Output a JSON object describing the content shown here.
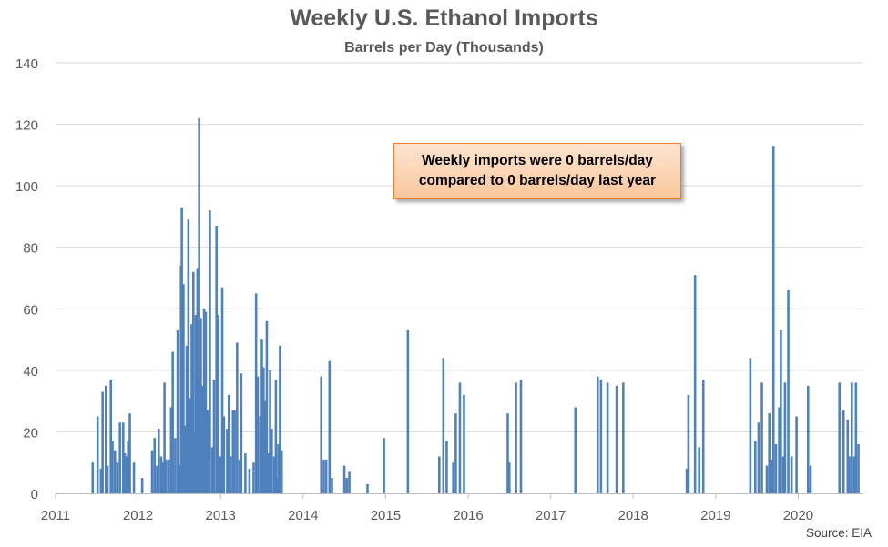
{
  "chart_data": {
    "type": "bar",
    "title": "Weekly U.S. Ethanol Imports",
    "subtitle": "Barrels per Day (Thousands)",
    "ylim": [
      0,
      140
    ],
    "yticks": [
      0,
      20,
      40,
      60,
      80,
      100,
      120,
      140
    ],
    "xticks": [
      "2011",
      "2012",
      "2013",
      "2014",
      "2015",
      "2016",
      "2017",
      "2018",
      "2019",
      "2020"
    ],
    "xlim": [
      2011.0,
      2020.8
    ],
    "grid": true,
    "bar_color": "#4f81bd",
    "annotation": "Weekly imports were 0 barrels/day\ncompared to 0 barrels/day last year",
    "source": "Source: EIA",
    "points": [
      [
        2011.45,
        10
      ],
      [
        2011.51,
        25
      ],
      [
        2011.55,
        8
      ],
      [
        2011.57,
        33
      ],
      [
        2011.61,
        35
      ],
      [
        2011.63,
        9
      ],
      [
        2011.67,
        37
      ],
      [
        2011.69,
        17
      ],
      [
        2011.72,
        14
      ],
      [
        2011.75,
        10
      ],
      [
        2011.78,
        23
      ],
      [
        2011.82,
        23
      ],
      [
        2011.84,
        13
      ],
      [
        2011.86,
        12
      ],
      [
        2011.88,
        17
      ],
      [
        2011.9,
        26
      ],
      [
        2011.95,
        10
      ],
      [
        2012.05,
        5
      ],
      [
        2012.17,
        14
      ],
      [
        2012.2,
        18
      ],
      [
        2012.23,
        9
      ],
      [
        2012.25,
        21
      ],
      [
        2012.28,
        12
      ],
      [
        2012.3,
        10
      ],
      [
        2012.32,
        36
      ],
      [
        2012.34,
        11
      ],
      [
        2012.37,
        11
      ],
      [
        2012.4,
        28
      ],
      [
        2012.42,
        46
      ],
      [
        2012.45,
        18
      ],
      [
        2012.48,
        53
      ],
      [
        2012.5,
        9
      ],
      [
        2012.52,
        74
      ],
      [
        2012.53,
        93
      ],
      [
        2012.55,
        68
      ],
      [
        2012.57,
        22
      ],
      [
        2012.59,
        48
      ],
      [
        2012.61,
        89
      ],
      [
        2012.63,
        31
      ],
      [
        2012.65,
        55
      ],
      [
        2012.67,
        72
      ],
      [
        2012.69,
        20
      ],
      [
        2012.7,
        58
      ],
      [
        2012.72,
        73
      ],
      [
        2012.74,
        122
      ],
      [
        2012.76,
        57
      ],
      [
        2012.78,
        35
      ],
      [
        2012.8,
        60
      ],
      [
        2012.82,
        59
      ],
      [
        2012.84,
        27
      ],
      [
        2012.86,
        12
      ],
      [
        2012.87,
        92
      ],
      [
        2012.9,
        15
      ],
      [
        2012.92,
        37
      ],
      [
        2012.95,
        87
      ],
      [
        2012.97,
        58
      ],
      [
        2013.0,
        12
      ],
      [
        2013.02,
        67
      ],
      [
        2013.04,
        25
      ],
      [
        2013.08,
        21
      ],
      [
        2013.1,
        32
      ],
      [
        2013.12,
        12
      ],
      [
        2013.15,
        27
      ],
      [
        2013.17,
        27
      ],
      [
        2013.2,
        49
      ],
      [
        2013.23,
        11
      ],
      [
        2013.25,
        39
      ],
      [
        2013.3,
        13
      ],
      [
        2013.35,
        8
      ],
      [
        2013.4,
        10
      ],
      [
        2013.43,
        65
      ],
      [
        2013.45,
        38
      ],
      [
        2013.48,
        25
      ],
      [
        2013.5,
        50
      ],
      [
        2013.52,
        41
      ],
      [
        2013.54,
        30
      ],
      [
        2013.56,
        56
      ],
      [
        2013.58,
        13
      ],
      [
        2013.6,
        40
      ],
      [
        2013.62,
        21
      ],
      [
        2013.65,
        12
      ],
      [
        2013.67,
        37
      ],
      [
        2013.68,
        5
      ],
      [
        2013.7,
        16
      ],
      [
        2013.72,
        48
      ],
      [
        2013.74,
        14
      ],
      [
        2014.22,
        38
      ],
      [
        2014.25,
        11
      ],
      [
        2014.28,
        11
      ],
      [
        2014.32,
        43
      ],
      [
        2014.35,
        5
      ],
      [
        2014.5,
        9
      ],
      [
        2014.53,
        5
      ],
      [
        2014.56,
        7
      ],
      [
        2014.78,
        3
      ],
      [
        2014.98,
        18
      ],
      [
        2015.27,
        53
      ],
      [
        2015.65,
        12
      ],
      [
        2015.7,
        44
      ],
      [
        2015.74,
        17
      ],
      [
        2015.82,
        10
      ],
      [
        2015.85,
        26
      ],
      [
        2015.9,
        36
      ],
      [
        2015.95,
        32
      ],
      [
        2016.48,
        26
      ],
      [
        2016.5,
        10
      ],
      [
        2016.58,
        36
      ],
      [
        2016.64,
        37
      ],
      [
        2017.3,
        28
      ],
      [
        2017.57,
        38
      ],
      [
        2017.61,
        37
      ],
      [
        2017.69,
        36
      ],
      [
        2017.8,
        35
      ],
      [
        2017.88,
        36
      ],
      [
        2018.65,
        8
      ],
      [
        2018.67,
        32
      ],
      [
        2018.75,
        71
      ],
      [
        2018.8,
        15
      ],
      [
        2018.85,
        37
      ],
      [
        2019.42,
        44
      ],
      [
        2019.48,
        17
      ],
      [
        2019.52,
        23
      ],
      [
        2019.56,
        36
      ],
      [
        2019.62,
        9
      ],
      [
        2019.65,
        26
      ],
      [
        2019.68,
        11
      ],
      [
        2019.7,
        113
      ],
      [
        2019.73,
        16
      ],
      [
        2019.77,
        28
      ],
      [
        2019.79,
        53
      ],
      [
        2019.82,
        12
      ],
      [
        2019.84,
        36
      ],
      [
        2019.88,
        66
      ],
      [
        2019.92,
        12
      ],
      [
        2019.98,
        25
      ],
      [
        2020.12,
        35
      ],
      [
        2020.15,
        9
      ],
      [
        2020.5,
        36
      ],
      [
        2020.55,
        27
      ],
      [
        2020.6,
        24
      ],
      [
        2020.62,
        12
      ],
      [
        2020.65,
        36
      ],
      [
        2020.68,
        12
      ],
      [
        2020.7,
        36
      ],
      [
        2020.73,
        16
      ]
    ]
  }
}
